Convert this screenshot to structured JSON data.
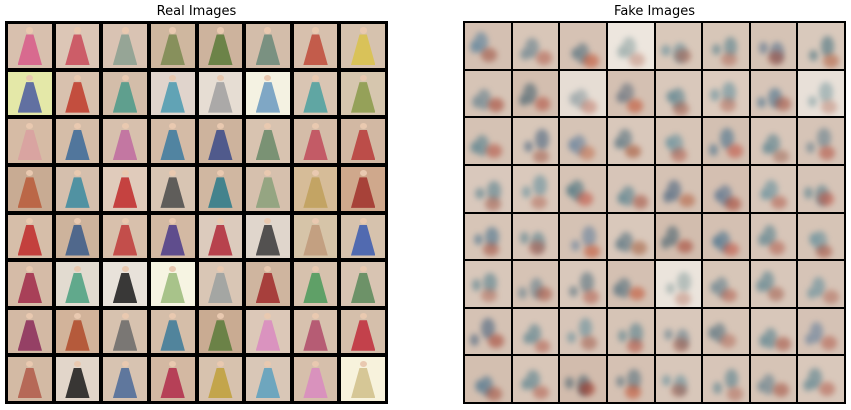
{
  "panels": {
    "real": {
      "title": "Real Images"
    },
    "fake": {
      "title": "Fake Images"
    }
  },
  "grid": {
    "rows": 8,
    "cols": 8
  },
  "colors": {
    "background": "#ffffff",
    "grid_border": "#000000",
    "tile_base": "#d8bfae",
    "tile_light": "#f3e9dc",
    "accent_red": "#b83a2c",
    "accent_teal": "#4f8a8a",
    "accent_blue": "#3a5f8f",
    "accent_green": "#6f8f5a",
    "accent_pink": "#d98aa0"
  },
  "real_tiles": [
    {
      "bg": "#d8c0ae",
      "c": "#d85a8a"
    },
    {
      "bg": "#dcc6b6",
      "c": "#c94a5a"
    },
    {
      "bg": "#d9c3b3",
      "c": "#8aa090"
    },
    {
      "bg": "#cfb79f",
      "c": "#7a8a50"
    },
    {
      "bg": "#cdb39d",
      "c": "#5a7a3a"
    },
    {
      "bg": "#d3bdaa",
      "c": "#6a8a7a"
    },
    {
      "bg": "#d7c0ad",
      "c": "#c04a3a"
    },
    {
      "bg": "#d6c2ae",
      "c": "#d9c24a"
    },
    {
      "bg": "#e4e8a8",
      "c": "#4a5aa0"
    },
    {
      "bg": "#d8c1ae",
      "c": "#c03a2a"
    },
    {
      "bg": "#d3bda9",
      "c": "#4a9a8a"
    },
    {
      "bg": "#e0d4cc",
      "c": "#4a9ab0"
    },
    {
      "bg": "#e6ddd3",
      "c": "#a0a0a0"
    },
    {
      "bg": "#f4f2e2",
      "c": "#6a9ac0"
    },
    {
      "bg": "#d9c5b3",
      "c": "#4aa0a0"
    },
    {
      "bg": "#d6c6ae",
      "c": "#8a9a4a"
    },
    {
      "bg": "#d6bba5",
      "c": "#d9a0a0"
    },
    {
      "bg": "#d5bda8",
      "c": "#3a6a9a"
    },
    {
      "bg": "#d7c0ad",
      "c": "#c06aa0"
    },
    {
      "bg": "#d4bba6",
      "c": "#3a7aa0"
    },
    {
      "bg": "#cdb39d",
      "c": "#3a4a8a"
    },
    {
      "bg": "#d8c3b0",
      "c": "#6a8a6a"
    },
    {
      "bg": "#d4bca8",
      "c": "#c04a5a"
    },
    {
      "bg": "#d2b8a3",
      "c": "#b83a3a"
    },
    {
      "bg": "#c8ab93",
      "c": "#b85a3a"
    },
    {
      "bg": "#d5bfad",
      "c": "#3a8aa0"
    },
    {
      "bg": "#e0cbbb",
      "c": "#c02a2a"
    },
    {
      "bg": "#d8c5b3",
      "c": "#4a4a4a"
    },
    {
      "bg": "#d0b7a1",
      "c": "#2a7a8a"
    },
    {
      "bg": "#d6c0ad",
      "c": "#8aa07a"
    },
    {
      "bg": "#d6bc98",
      "c": "#c0a05a"
    },
    {
      "bg": "#cfa88c",
      "c": "#a0302a"
    },
    {
      "bg": "#d6bea9",
      "c": "#c02a2a"
    },
    {
      "bg": "#cdb39c",
      "c": "#3a5a8a"
    },
    {
      "bg": "#d8c0ac",
      "c": "#c03a3a"
    },
    {
      "bg": "#d3b9a3",
      "c": "#4a3a8a"
    },
    {
      "bg": "#dccbbd",
      "c": "#b02a3a"
    },
    {
      "bg": "#e0d6cc",
      "c": "#3a3a3a"
    },
    {
      "bg": "#d6c4a8",
      "c": "#c09a7a"
    },
    {
      "bg": "#d6c2ad",
      "c": "#3a5ab0"
    },
    {
      "bg": "#d5bba7",
      "c": "#a02a4a"
    },
    {
      "bg": "#e2dbd0",
      "c": "#4aa080"
    },
    {
      "bg": "#e8e2da",
      "c": "#1a1a1a"
    },
    {
      "bg": "#f6f4e2",
      "c": "#9aba7a"
    },
    {
      "bg": "#d9c6b5",
      "c": "#9aa0a0"
    },
    {
      "bg": "#cfb59f",
      "c": "#a02a2a"
    },
    {
      "bg": "#d6c1ad",
      "c": "#4a9a5a"
    },
    {
      "bg": "#d8c4b2",
      "c": "#5a8a5a"
    },
    {
      "bg": "#d3b9a4",
      "c": "#8a2a5a"
    },
    {
      "bg": "#d2b39a",
      "c": "#b04a2a"
    },
    {
      "bg": "#d7c2af",
      "c": "#6a6a6a"
    },
    {
      "bg": "#d5bea9",
      "c": "#3a7a9a"
    },
    {
      "bg": "#c9ab92",
      "c": "#5a7a3a"
    },
    {
      "bg": "#dcc8b8",
      "c": "#d98ac0"
    },
    {
      "bg": "#d7c1ae",
      "c": "#b04a6a"
    },
    {
      "bg": "#d5bfab",
      "c": "#c02a3a"
    },
    {
      "bg": "#d3baa4",
      "c": "#b05a4a"
    },
    {
      "bg": "#e2d6ca",
      "c": "#1a1a1a"
    },
    {
      "bg": "#d7c3b1",
      "c": "#4a6a9a"
    },
    {
      "bg": "#d3b8a2",
      "c": "#b02a4a"
    },
    {
      "bg": "#d7c2ae",
      "c": "#c0a03a"
    },
    {
      "bg": "#d9c7b7",
      "c": "#5aa0c0"
    },
    {
      "bg": "#d6bfab",
      "c": "#d98ac0"
    },
    {
      "bg": "#f7f2dc",
      "c": "#d0c08a"
    }
  ],
  "fake_tiles": [
    {
      "bg": "#d4c0b2",
      "c": "#4a7a9a",
      "r": "#9a4a3a"
    },
    {
      "bg": "#d8c6b8",
      "c": "#5a7a8a",
      "r": "#b05a4a"
    },
    {
      "bg": "#d6c2b4",
      "c": "#4a6a7a",
      "r": "#c04a2a"
    },
    {
      "bg": "#ede6de",
      "c": "#8aa0a0",
      "r": "#c08a7a"
    },
    {
      "bg": "#d9c8ba",
      "c": "#5a8a9a",
      "r": "#a05a4a"
    },
    {
      "bg": "#d7c6b8",
      "c": "#4a7a8a",
      "r": "#b06a5a"
    },
    {
      "bg": "#d5c3b5",
      "c": "#4a6a8a",
      "r": "#a04a3a"
    },
    {
      "bg": "#d9c9bc",
      "c": "#3a6a7a",
      "r": "#b05a3a"
    },
    {
      "bg": "#d6c4b6",
      "c": "#5a7a8a",
      "r": "#a03a2a"
    },
    {
      "bg": "#d3beaf",
      "c": "#3a5a6a",
      "r": "#b04a3a"
    },
    {
      "bg": "#e6ddd4",
      "c": "#8a9aa0",
      "r": "#c07a6a"
    },
    {
      "bg": "#d4c0b2",
      "c": "#5a6a7a",
      "r": "#c04a2a"
    },
    {
      "bg": "#d9c8bb",
      "c": "#4a7a8a",
      "r": "#a05a4a"
    },
    {
      "bg": "#dccbbe",
      "c": "#5a8a9a",
      "r": "#b06a5a"
    },
    {
      "bg": "#d7c5b8",
      "c": "#3a6a8a",
      "r": "#a04a3a"
    },
    {
      "bg": "#e8e0d8",
      "c": "#7a9aa0",
      "r": "#c08a7a"
    },
    {
      "bg": "#d5c2b4",
      "c": "#4a7a8a",
      "r": "#b04a3a"
    },
    {
      "bg": "#d8c7b9",
      "c": "#3a5a7a",
      "r": "#a05a4a"
    },
    {
      "bg": "#d6c4b6",
      "c": "#5a7a9a",
      "r": "#c06a4a"
    },
    {
      "bg": "#d9c8bb",
      "c": "#4a6a7a",
      "r": "#a04a2a"
    },
    {
      "bg": "#d7c5b7",
      "c": "#5a8a9a",
      "r": "#b05a4a"
    },
    {
      "bg": "#d3c0b2",
      "c": "#3a6a8a",
      "r": "#c04a3a"
    },
    {
      "bg": "#d8c6b9",
      "c": "#4a7a8a",
      "r": "#a06a5a"
    },
    {
      "bg": "#d6c4b7",
      "c": "#5a7a8a",
      "r": "#b04a3a"
    },
    {
      "bg": "#d9c8bc",
      "c": "#4a7a8a",
      "r": "#a05a4a"
    },
    {
      "bg": "#dac9bc",
      "c": "#5a8a9a",
      "r": "#b06a5a"
    },
    {
      "bg": "#d6c3b5",
      "c": "#3a6a7a",
      "r": "#c04a3a"
    },
    {
      "bg": "#d7c5b8",
      "c": "#4a7a8a",
      "r": "#a04a3a"
    },
    {
      "bg": "#d5c2b4",
      "c": "#3a5a7a",
      "r": "#b05a3a"
    },
    {
      "bg": "#d4bfb1",
      "c": "#4a6a8a",
      "r": "#a03a2a"
    },
    {
      "bg": "#d8c7ba",
      "c": "#5a8a9a",
      "r": "#b05a4a"
    },
    {
      "bg": "#d6c4b7",
      "c": "#4a7a8a",
      "r": "#c04a3a"
    },
    {
      "bg": "#d7c5b7",
      "c": "#3a6a8a",
      "r": "#a04a3a"
    },
    {
      "bg": "#d8c6b9",
      "c": "#4a7a8a",
      "r": "#b05a4a"
    },
    {
      "bg": "#d5c2b4",
      "c": "#5a7a9a",
      "r": "#c04a2a"
    },
    {
      "bg": "#d9c8bb",
      "c": "#4a6a7a",
      "r": "#a05a3a"
    },
    {
      "bg": "#d2bdae",
      "c": "#3a5a6a",
      "r": "#a03a2a"
    },
    {
      "bg": "#d4c0b2",
      "c": "#3a6a8a",
      "r": "#c04a3a"
    },
    {
      "bg": "#d7c5b8",
      "c": "#4a7a8a",
      "r": "#b05a4a"
    },
    {
      "bg": "#d6c4b6",
      "c": "#5a8a9a",
      "r": "#a04a3a"
    },
    {
      "bg": "#d8c7ba",
      "c": "#4a7a8a",
      "r": "#b06a5a"
    },
    {
      "bg": "#d6c3b5",
      "c": "#5a7a8a",
      "r": "#a04a3a"
    },
    {
      "bg": "#d9c8bb",
      "c": "#4a6a7a",
      "r": "#b05a4a"
    },
    {
      "bg": "#d4c0b2",
      "c": "#4a6a7a",
      "r": "#c04a2a"
    },
    {
      "bg": "#ebe4dc",
      "c": "#8aa0a0",
      "r": "#c08a7a"
    },
    {
      "bg": "#d7c6b8",
      "c": "#5a7a8a",
      "r": "#b05a4a"
    },
    {
      "bg": "#d8c7ba",
      "c": "#4a7a8a",
      "r": "#a05a4a"
    },
    {
      "bg": "#d6c4b7",
      "c": "#5a8a9a",
      "r": "#b06a5a"
    },
    {
      "bg": "#d5c2b4",
      "c": "#3a5a7a",
      "r": "#a03a2a"
    },
    {
      "bg": "#d8c6b9",
      "c": "#4a7a8a",
      "r": "#b05a4a"
    },
    {
      "bg": "#d7c5b8",
      "c": "#5a8a9a",
      "r": "#a05a4a"
    },
    {
      "bg": "#d6c4b6",
      "c": "#4a7a8a",
      "r": "#b04a3a"
    },
    {
      "bg": "#d9c8bb",
      "c": "#5a7a8a",
      "r": "#a05a4a"
    },
    {
      "bg": "#d7c5b7",
      "c": "#4a6a7a",
      "r": "#b06a5a"
    },
    {
      "bg": "#d8c7ba",
      "c": "#4a7a8a",
      "r": "#a04a3a"
    },
    {
      "bg": "#d5c2b5",
      "c": "#5a7a9a",
      "r": "#b05a4a"
    },
    {
      "bg": "#d3bfb0",
      "c": "#3a6a8a",
      "r": "#a04a3a"
    },
    {
      "bg": "#d8c6b8",
      "c": "#4a7a8a",
      "r": "#b05a4a"
    },
    {
      "bg": "#d2bcad",
      "c": "#3a5a6a",
      "r": "#a02a1a"
    },
    {
      "bg": "#d5c1b3",
      "c": "#4a6a7a",
      "r": "#c04a2a"
    },
    {
      "bg": "#d8c7ba",
      "c": "#5a8a9a",
      "r": "#a05a4a"
    },
    {
      "bg": "#d7c5b8",
      "c": "#4a7a8a",
      "r": "#b06a5a"
    },
    {
      "bg": "#d6c4b6",
      "c": "#5a7a8a",
      "r": "#a04a3a"
    },
    {
      "bg": "#d9c8bb",
      "c": "#4a7a8a",
      "r": "#b05a4a"
    }
  ]
}
